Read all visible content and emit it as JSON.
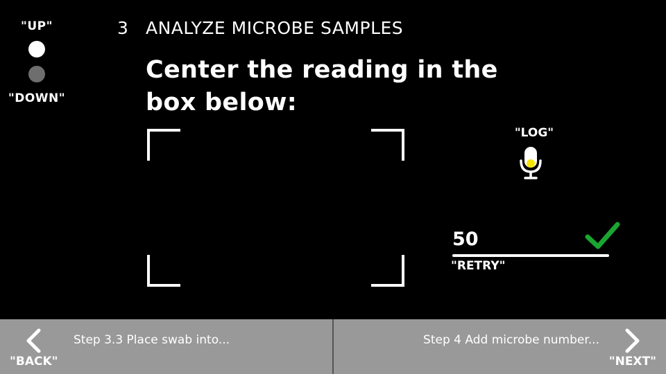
{
  "voice_controls": {
    "up_label": "\"UP\"",
    "down_label": "\"DOWN\"",
    "up_color": "#ffffff",
    "down_color": "#6e6e6e"
  },
  "header": {
    "step_number": "3",
    "title": "ANALYZE MICROBE SAMPLES"
  },
  "instruction": "Center the reading in the box below:",
  "viewfinder": {
    "corner_color": "#ffffff"
  },
  "log": {
    "label": "\"LOG\"",
    "icon": "microphone-icon",
    "indicator_color": "#f5e400"
  },
  "reading": {
    "value": "50",
    "status_icon": "checkmark-icon",
    "status_color": "#1aa532",
    "retry_label": "\"RETRY\""
  },
  "nav": {
    "back": {
      "icon": "chevron-left-icon",
      "text": "Step 3.3 Place swab into...",
      "voice_label": "\"BACK\""
    },
    "next": {
      "icon": "chevron-right-icon",
      "text": "Step 4 Add microbe number...",
      "voice_label": "\"NEXT\""
    },
    "background_color": "#999999"
  }
}
